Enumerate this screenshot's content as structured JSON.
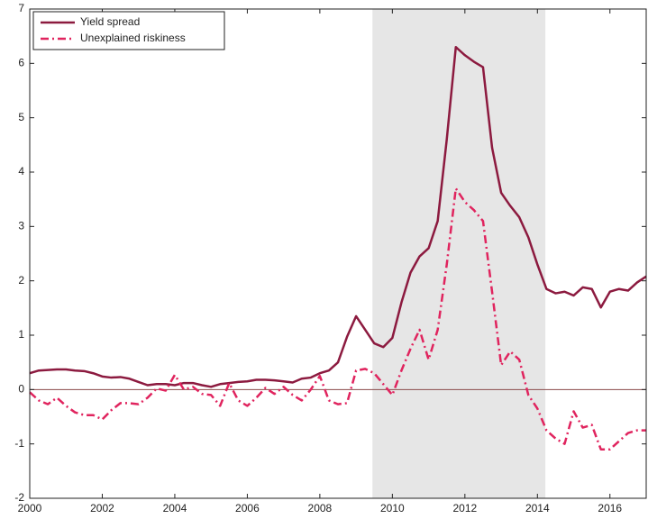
{
  "chart_data": {
    "type": "line",
    "x": [
      2000,
      2000.25,
      2000.5,
      2000.75,
      2001,
      2001.25,
      2001.5,
      2001.75,
      2002,
      2002.25,
      2002.5,
      2002.75,
      2003,
      2003.25,
      2003.5,
      2003.75,
      2004,
      2004.25,
      2004.5,
      2004.75,
      2005,
      2005.25,
      2005.5,
      2005.75,
      2006,
      2006.25,
      2006.5,
      2006.75,
      2007,
      2007.25,
      2007.5,
      2007.75,
      2008,
      2008.25,
      2008.5,
      2008.75,
      2009,
      2009.25,
      2009.5,
      2009.75,
      2010,
      2010.25,
      2010.5,
      2010.75,
      2011,
      2011.25,
      2011.5,
      2011.75,
      2012,
      2012.25,
      2012.5,
      2012.75,
      2013,
      2013.25,
      2013.5,
      2013.75,
      2014,
      2014.25,
      2014.5,
      2014.75,
      2015,
      2015.25,
      2015.5,
      2015.75,
      2016,
      2016.25,
      2016.5,
      2016.75,
      2017
    ],
    "series": [
      {
        "name": "Yield spread",
        "color": "#8c1a3f",
        "style": "solid",
        "values": [
          0.3,
          0.35,
          0.36,
          0.37,
          0.37,
          0.35,
          0.34,
          0.3,
          0.24,
          0.22,
          0.23,
          0.2,
          0.14,
          0.08,
          0.1,
          0.1,
          0.08,
          0.12,
          0.12,
          0.08,
          0.05,
          0.1,
          0.12,
          0.14,
          0.15,
          0.18,
          0.18,
          0.17,
          0.15,
          0.13,
          0.2,
          0.22,
          0.3,
          0.35,
          0.5,
          0.97,
          1.35,
          1.1,
          0.85,
          0.78,
          0.95,
          1.6,
          2.15,
          2.45,
          2.6,
          3.1,
          4.6,
          6.3,
          6.15,
          6.03,
          5.93,
          4.45,
          3.62,
          3.38,
          3.17,
          2.8,
          2.3,
          1.85,
          1.77,
          1.8,
          1.73,
          1.88,
          1.85,
          1.51,
          1.8,
          1.85,
          1.82,
          1.97,
          2.08
        ]
      },
      {
        "name": "Unexplained riskiness",
        "color": "#e0245e",
        "style": "dashdot",
        "values": [
          -0.05,
          -0.2,
          -0.27,
          -0.15,
          -0.3,
          -0.42,
          -0.47,
          -0.47,
          -0.55,
          -0.38,
          -0.25,
          -0.25,
          -0.27,
          -0.15,
          0.02,
          -0.02,
          0.27,
          0.0,
          0.05,
          -0.08,
          -0.1,
          -0.3,
          0.12,
          -0.2,
          -0.3,
          -0.15,
          0.03,
          -0.08,
          0.05,
          -0.1,
          -0.2,
          0.0,
          0.25,
          -0.2,
          -0.27,
          -0.25,
          0.35,
          0.38,
          0.3,
          0.1,
          -0.1,
          0.35,
          0.75,
          1.1,
          0.55,
          1.1,
          2.3,
          3.7,
          3.45,
          3.3,
          3.1,
          1.8,
          0.45,
          0.7,
          0.55,
          -0.1,
          -0.35,
          -0.75,
          -0.9,
          -1.0,
          -0.4,
          -0.7,
          -0.65,
          -1.1,
          -1.1,
          -0.95,
          -0.8,
          -0.75,
          -0.75
        ]
      }
    ],
    "shaded_region": [
      2009.45,
      2014.22
    ],
    "xlim": [
      2000,
      2017
    ],
    "xticks": [
      2000,
      2002,
      2004,
      2006,
      2008,
      2010,
      2012,
      2014,
      2016
    ],
    "ylim": [
      -2,
      7
    ],
    "yticks": [
      -2,
      -1,
      0,
      1,
      2,
      3,
      4,
      5,
      6,
      7
    ],
    "zero_line": true,
    "legend": "upper-left"
  }
}
